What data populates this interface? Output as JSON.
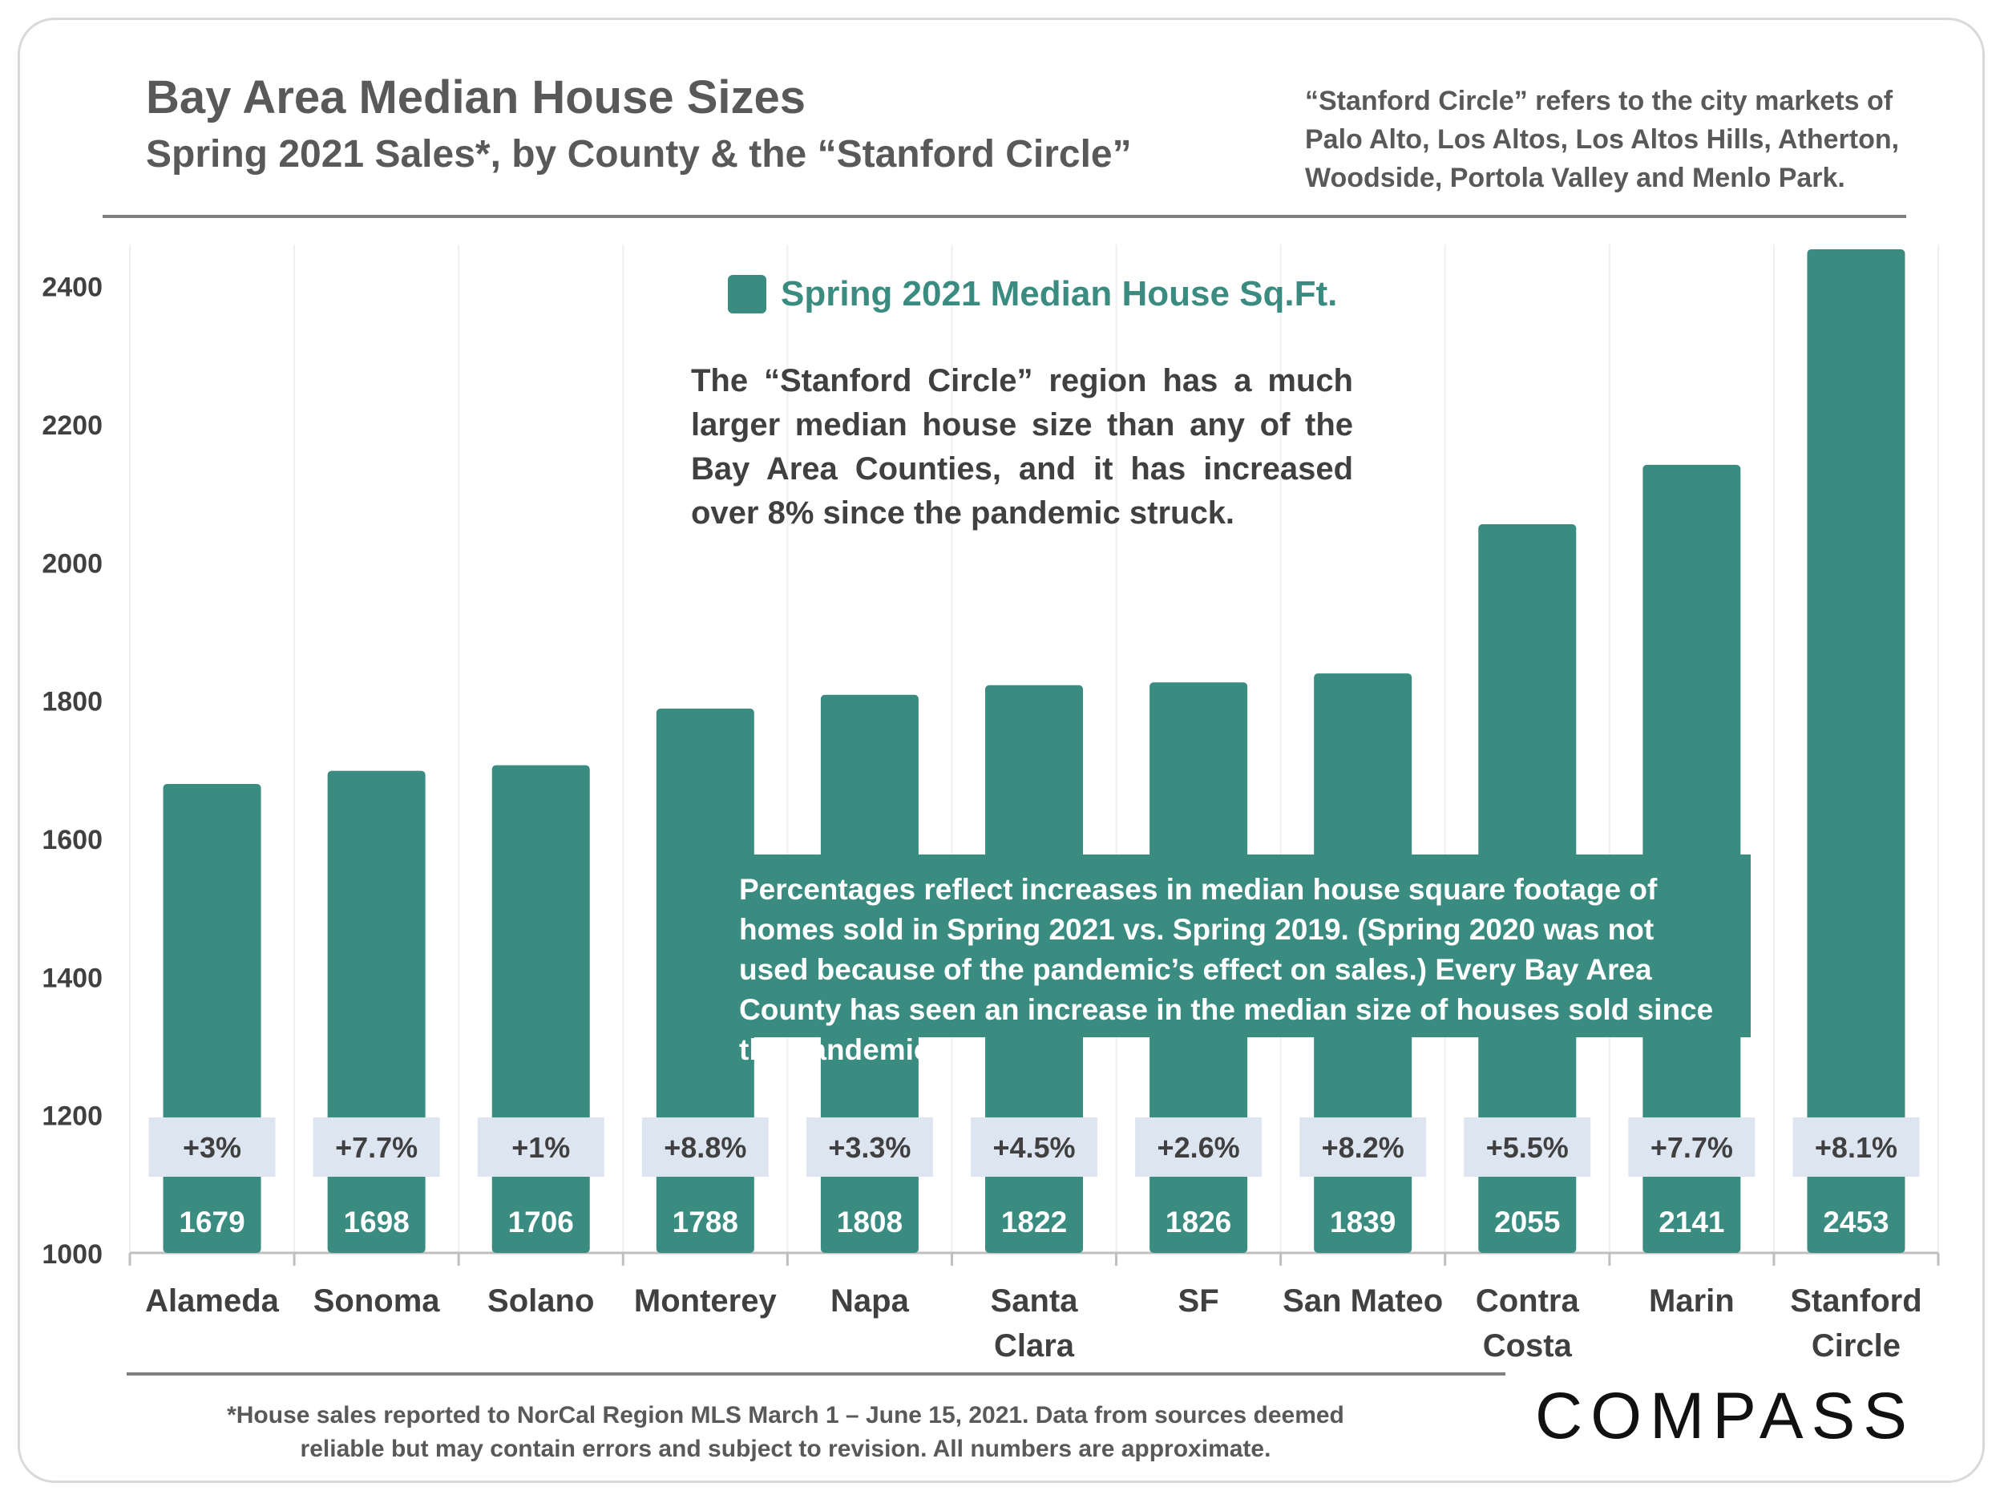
{
  "header": {
    "title": "Bay Area Median House Sizes",
    "subtitle": "Spring 2021 Sales*, by County & the “Stanford Circle”",
    "note": "“Stanford Circle” refers to the city markets of Palo Alto, Los Altos, Los Altos Hills, Atherton, Woodside, Portola Valley and Menlo Park."
  },
  "annotations": {
    "stanford": "The “Stanford Circle” region has a much larger median house size than any of the Bay Area Counties, and it has increased over 8% since the pandemic struck.",
    "percentages": "Percentages reflect increases in median house square footage of homes sold in Spring 2021 vs. Spring 2019. (Spring 2020 was not used because of the pandemic’s effect on sales.) Every Bay Area County has seen an increase in the median size of houses sold since the pandemic."
  },
  "footer": {
    "text": "*House sales reported to NorCal Region MLS March 1 – June 15, 2021. Data from sources deemed reliable but may contain errors and subject to revision.  All numbers are approximate.",
    "logo": "COMPASS"
  },
  "colors": {
    "bar": "#3a8c81",
    "pct_box": "#dde6f0",
    "text": "#404040"
  },
  "chart_data": {
    "type": "bar",
    "categories": [
      "Alameda",
      "Sonoma",
      "Solano",
      "Monterey",
      "Napa",
      "Santa Clara",
      "SF",
      "San Mateo",
      "Contra Costa",
      "Marin",
      "Stanford Circle"
    ],
    "category_lines": [
      [
        "Alameda"
      ],
      [
        "Sonoma"
      ],
      [
        "Solano"
      ],
      [
        "Monterey"
      ],
      [
        "Napa"
      ],
      [
        "Santa",
        "Clara"
      ],
      [
        "SF"
      ],
      [
        "San Mateo"
      ],
      [
        "Contra",
        "Costa"
      ],
      [
        "Marin"
      ],
      [
        "Stanford",
        "Circle"
      ]
    ],
    "series": [
      {
        "name": "Spring 2021 Median House Sq.Ft.",
        "values": [
          1679,
          1698,
          1706,
          1788,
          1808,
          1822,
          1826,
          1839,
          2055,
          2141,
          2453
        ]
      }
    ],
    "value_labels": [
      "1679",
      "1698",
      "1706",
      "1788",
      "1808",
      "1822",
      "1826",
      "1839",
      "2055",
      "2141",
      "2453"
    ],
    "percent_labels": [
      "+3%",
      "+7.7%",
      "+1%",
      "+8.8%",
      "+3.3%",
      "+4.5%",
      "+2.6%",
      "+8.2%",
      "+5.5%",
      "+7.7%",
      "+8.1%"
    ],
    "ylim": [
      1000,
      2460
    ],
    "yticks": [
      1000,
      1200,
      1400,
      1600,
      1800,
      2000,
      2200,
      2400
    ],
    "ytick_labels": [
      "1000",
      "1200",
      "1400",
      "1600",
      "1800",
      "2000",
      "2200",
      "2400"
    ],
    "xlabel": "",
    "ylabel": "",
    "grid": true,
    "legend": "top-center"
  }
}
